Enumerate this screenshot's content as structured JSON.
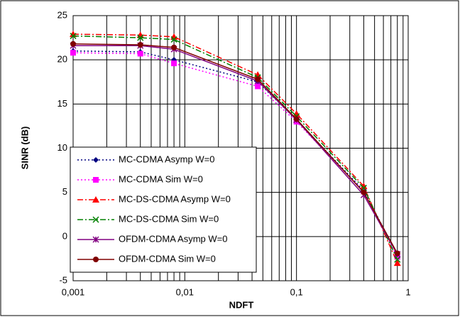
{
  "chart_data": {
    "type": "line",
    "x_label": "NDFT",
    "y_label": "SINR (dB)",
    "x": [
      0.001,
      0.004,
      0.008,
      0.045,
      0.1,
      0.4,
      0.8
    ],
    "series": [
      {
        "name": "MC-CDMA Asymp W=0",
        "color": "#000080",
        "dash": "dotted",
        "marker": "diamond",
        "values": [
          21,
          20.9,
          20,
          17.5,
          13.2,
          5.2,
          -2
        ]
      },
      {
        "name": "MC-CDMA Sim W=0",
        "color": "#ff00ff",
        "dash": "dotted",
        "marker": "square",
        "values": [
          20.8,
          20.7,
          19.6,
          17,
          13,
          5.1,
          -2.3
        ]
      },
      {
        "name": "MC-DS-CDMA Asymp W=0",
        "color": "#ff0000",
        "dash": "dashdot",
        "marker": "triangle",
        "values": [
          22.9,
          22.8,
          22.6,
          18.3,
          13.9,
          5.7,
          -3
        ]
      },
      {
        "name": "MC-DS-CDMA Sim W=0",
        "color": "#008000",
        "dash": "dashdot",
        "marker": "x",
        "values": [
          22.7,
          22.5,
          22.3,
          18,
          13.6,
          5.5,
          -2.6
        ]
      },
      {
        "name": "OFDM-CDMA Asymp W=0",
        "color": "#800080",
        "dash": "solid",
        "marker": "star",
        "values": [
          21.6,
          21.6,
          21.2,
          17.6,
          13.2,
          4.7,
          -2
        ]
      },
      {
        "name": "OFDM-CDMA Sim W=0",
        "color": "#800000",
        "dash": "solid",
        "marker": "circle",
        "values": [
          21.8,
          21.7,
          21.4,
          17.8,
          13.3,
          5,
          -1.9
        ]
      }
    ],
    "xlog": true,
    "xlim": [
      0.001,
      1
    ],
    "ylim": [
      -5,
      25
    ],
    "xticks": [
      {
        "value": 0.001,
        "label": "0,001"
      },
      {
        "value": 0.01,
        "label": "0,01"
      },
      {
        "value": 0.1,
        "label": "0,1"
      },
      1
    ],
    "x_minor_ticks": [
      0.002,
      0.003,
      0.004,
      0.005,
      0.006,
      0.007,
      0.008,
      0.009,
      0.02,
      0.03,
      0.04,
      0.05,
      0.06,
      0.07,
      0.08,
      0.09,
      0.2,
      0.3,
      0.4,
      0.5,
      0.6,
      0.7,
      0.8,
      0.9
    ],
    "yticks": [
      -5,
      0,
      5,
      10,
      15,
      20,
      25
    ],
    "grid": true,
    "legend": "lower left"
  }
}
